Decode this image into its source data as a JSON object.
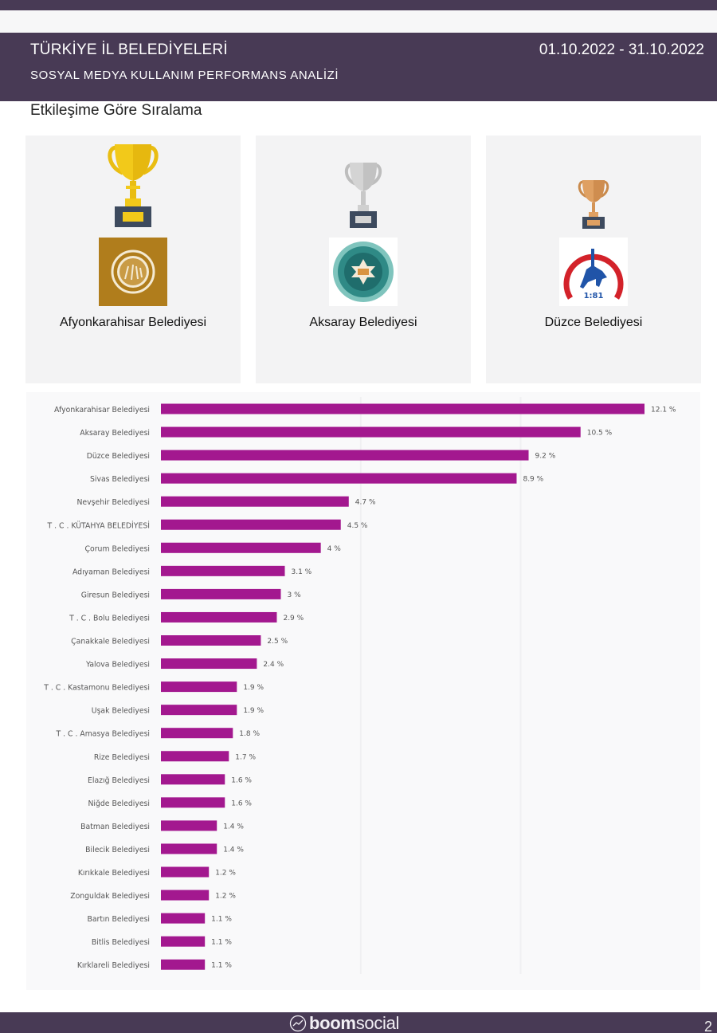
{
  "header": {
    "title": "TÜRKİYE İL BELEDİYELERİ",
    "subtitle": "SOSYAL MEDYA KULLANIM PERFORMANS ANALİZİ",
    "date_range": "01.10.2022 - 31.10.2022"
  },
  "section_title": "Etkileşime Göre Sıralama",
  "podium": [
    {
      "rank": 1,
      "trophy": "gold-trophy-icon",
      "trophy_color": "#f2c91a",
      "name": "Afyonkarahisar Belediyesi",
      "logo": "afyonkarahisar-logo"
    },
    {
      "rank": 2,
      "trophy": "silver-trophy-icon",
      "trophy_color": "#c8c8c8",
      "name": "Aksaray Belediyesi",
      "logo": "aksaray-logo"
    },
    {
      "rank": 3,
      "trophy": "bronze-trophy-icon",
      "trophy_color": "#d99a5b",
      "name": "Düzce Belediyesi",
      "logo": "duzce-logo"
    }
  ],
  "colors": {
    "header_bg": "#483a55",
    "bar": "#a3188f"
  },
  "chart_data": {
    "type": "bar",
    "orientation": "horizontal",
    "title": "",
    "xlabel": "",
    "ylabel": "",
    "value_suffix": " %",
    "xlim": [
      0,
      12.1
    ],
    "grid": true,
    "categories": [
      "Afyonkarahisar Belediyesi",
      "Aksaray Belediyesi",
      "Düzce Belediyesi",
      "Sivas Belediyesi",
      "Nevşehir Belediyesi",
      "T . C . KÜTAHYA BELEDİYESİ",
      "Çorum Belediyesi",
      "Adıyaman Belediyesi",
      "Giresun Belediyesi",
      "T . C . Bolu Belediyesi",
      "Çanakkale Belediyesi",
      "Yalova Belediyesi",
      "T . C . Kastamonu Belediyesi",
      "Uşak Belediyesi",
      "T . C . Amasya Belediyesi",
      "Rize Belediyesi",
      "Elazığ Belediyesi",
      "Niğde Belediyesi",
      "Batman Belediyesi",
      "Bilecik Belediyesi",
      "Kırıkkale Belediyesi",
      "Zonguldak Belediyesi",
      "Bartın Belediyesi",
      "Bitlis Belediyesi",
      "Kırklareli Belediyesi"
    ],
    "values": [
      12.1,
      10.5,
      9.2,
      8.9,
      4.7,
      4.5,
      4,
      3.1,
      3,
      2.9,
      2.5,
      2.4,
      1.9,
      1.9,
      1.8,
      1.7,
      1.6,
      1.6,
      1.4,
      1.4,
      1.2,
      1.2,
      1.1,
      1.1,
      1.1
    ]
  },
  "footer": {
    "brand_bold": "boom",
    "brand_light": "social",
    "page_number": "2"
  }
}
